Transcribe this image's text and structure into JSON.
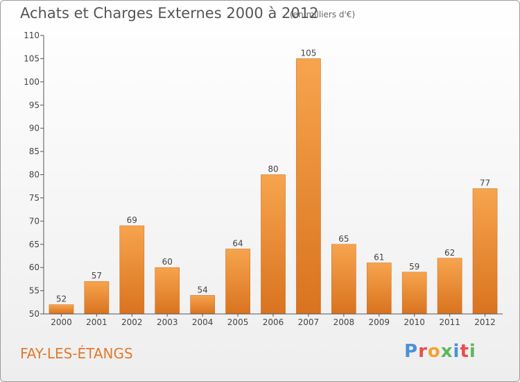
{
  "header": {
    "title": "Achats et Charges Externes 2000 à 2012",
    "subtitle": "(en milliers d'€)"
  },
  "footer": {
    "commune": "FAY-LES-ÉTANGS",
    "logo": [
      "P",
      "r",
      "o",
      "x",
      "i",
      "t",
      "i"
    ]
  },
  "colors": {
    "bar": "#f0902e",
    "logo": [
      "#4a90d9",
      "#e94e4e",
      "#f3a233",
      "#5cb85c",
      "#4a90d9",
      "#e94e4e",
      "#5cb85c"
    ]
  },
  "chart_data": {
    "type": "bar",
    "title": "Achats et Charges Externes 2000 à 2012",
    "subtitle": "(en milliers d'€)",
    "categories": [
      "2000",
      "2001",
      "2002",
      "2003",
      "2004",
      "2005",
      "2006",
      "2007",
      "2008",
      "2009",
      "2010",
      "2011",
      "2012"
    ],
    "values": [
      52,
      57,
      69,
      60,
      54,
      64,
      80,
      105,
      65,
      61,
      59,
      62,
      77
    ],
    "ylim": [
      50,
      110
    ],
    "yticks": [
      50,
      55,
      60,
      65,
      70,
      75,
      80,
      85,
      90,
      95,
      100,
      105,
      110
    ],
    "grid": false
  }
}
